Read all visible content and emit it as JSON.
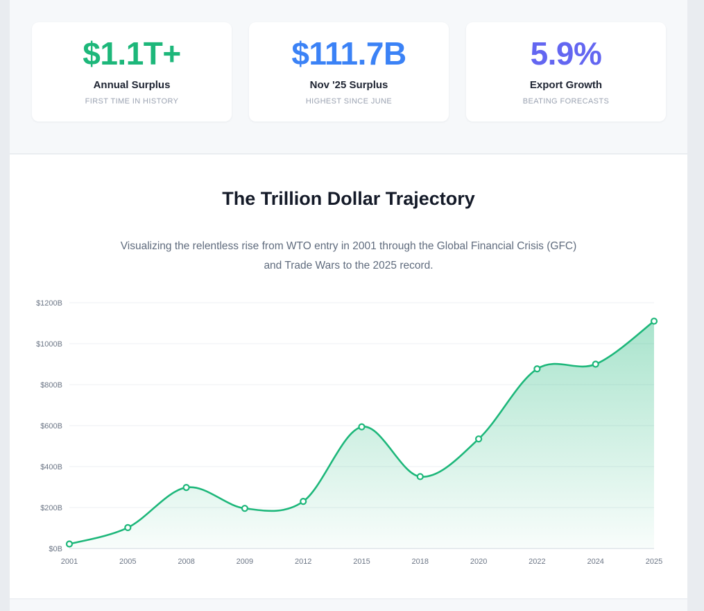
{
  "stats": [
    {
      "value": "$1.1T+",
      "label": "Annual Surplus",
      "sub": "FIRST TIME IN HISTORY",
      "color": "#1db77a"
    },
    {
      "value": "$111.7B",
      "label": "Nov '25 Surplus",
      "sub": "HIGHEST SINCE JUNE",
      "color": "#3b82f6"
    },
    {
      "value": "5.9%",
      "label": "Export Growth",
      "sub": "BEATING FORECASTS",
      "color": "#6366f1"
    }
  ],
  "chart": {
    "title": "The Trillion Dollar Trajectory",
    "subtitle": "Visualizing the relentless rise from WTO entry in 2001 through the Global Financial Crisis (GFC) and Trade Wars to the 2025 record."
  },
  "chart_data": {
    "type": "area",
    "title": "The Trillion Dollar Trajectory",
    "x": [
      "2001",
      "2005",
      "2008",
      "2009",
      "2012",
      "2015",
      "2018",
      "2020",
      "2022",
      "2024",
      "2025"
    ],
    "values": [
      22,
      102,
      298,
      196,
      230,
      594,
      351,
      535,
      877,
      900,
      1110
    ],
    "ylim": [
      0,
      1200
    ],
    "yticks": [
      0,
      200,
      400,
      600,
      800,
      1000,
      1200
    ],
    "ytick_labels": [
      "$0B",
      "$200B",
      "$400B",
      "$600B",
      "$800B",
      "$1000B",
      "$1200B"
    ],
    "xlabel": "",
    "ylabel": "",
    "color": "#1db77a",
    "grid": true
  }
}
